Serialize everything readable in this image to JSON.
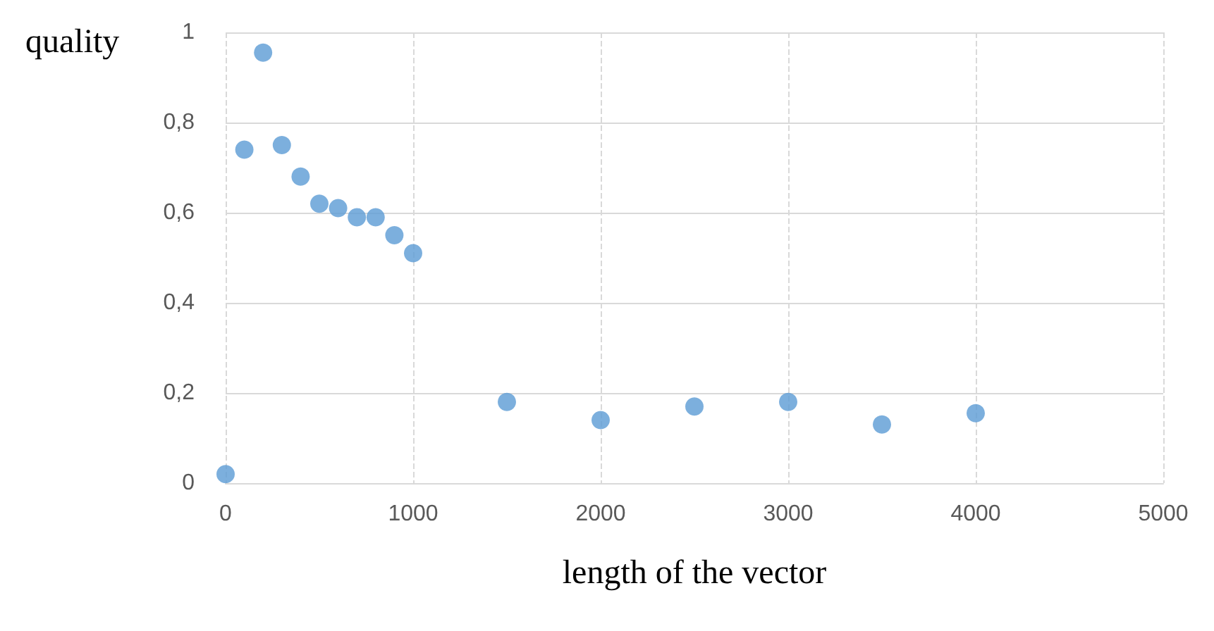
{
  "chart_data": {
    "type": "scatter",
    "xlabel": "length of the vector",
    "ylabel": "quality",
    "x": [
      0,
      100,
      200,
      300,
      400,
      500,
      600,
      700,
      800,
      900,
      1000,
      1500,
      2000,
      2500,
      3000,
      3500,
      4000
    ],
    "values": [
      0.02,
      0.74,
      0.955,
      0.75,
      0.68,
      0.62,
      0.61,
      0.59,
      0.59,
      0.55,
      0.51,
      0.18,
      0.14,
      0.17,
      0.18,
      0.13,
      0.155
    ],
    "color": "#5b9bd5",
    "marker": "circle",
    "grid": true,
    "xlim": [
      0,
      5000
    ],
    "xticks": [
      0,
      1000,
      2000,
      3000,
      4000,
      5000
    ],
    "ylim": [
      0,
      1
    ],
    "yticks": [
      0,
      {
        "value": 0.2,
        "label": "0,2"
      },
      {
        "value": 0.4,
        "label": "0,4"
      },
      {
        "value": 0.6,
        "label": "0,6"
      },
      {
        "value": 0.8,
        "label": "0,8"
      },
      1
    ]
  }
}
